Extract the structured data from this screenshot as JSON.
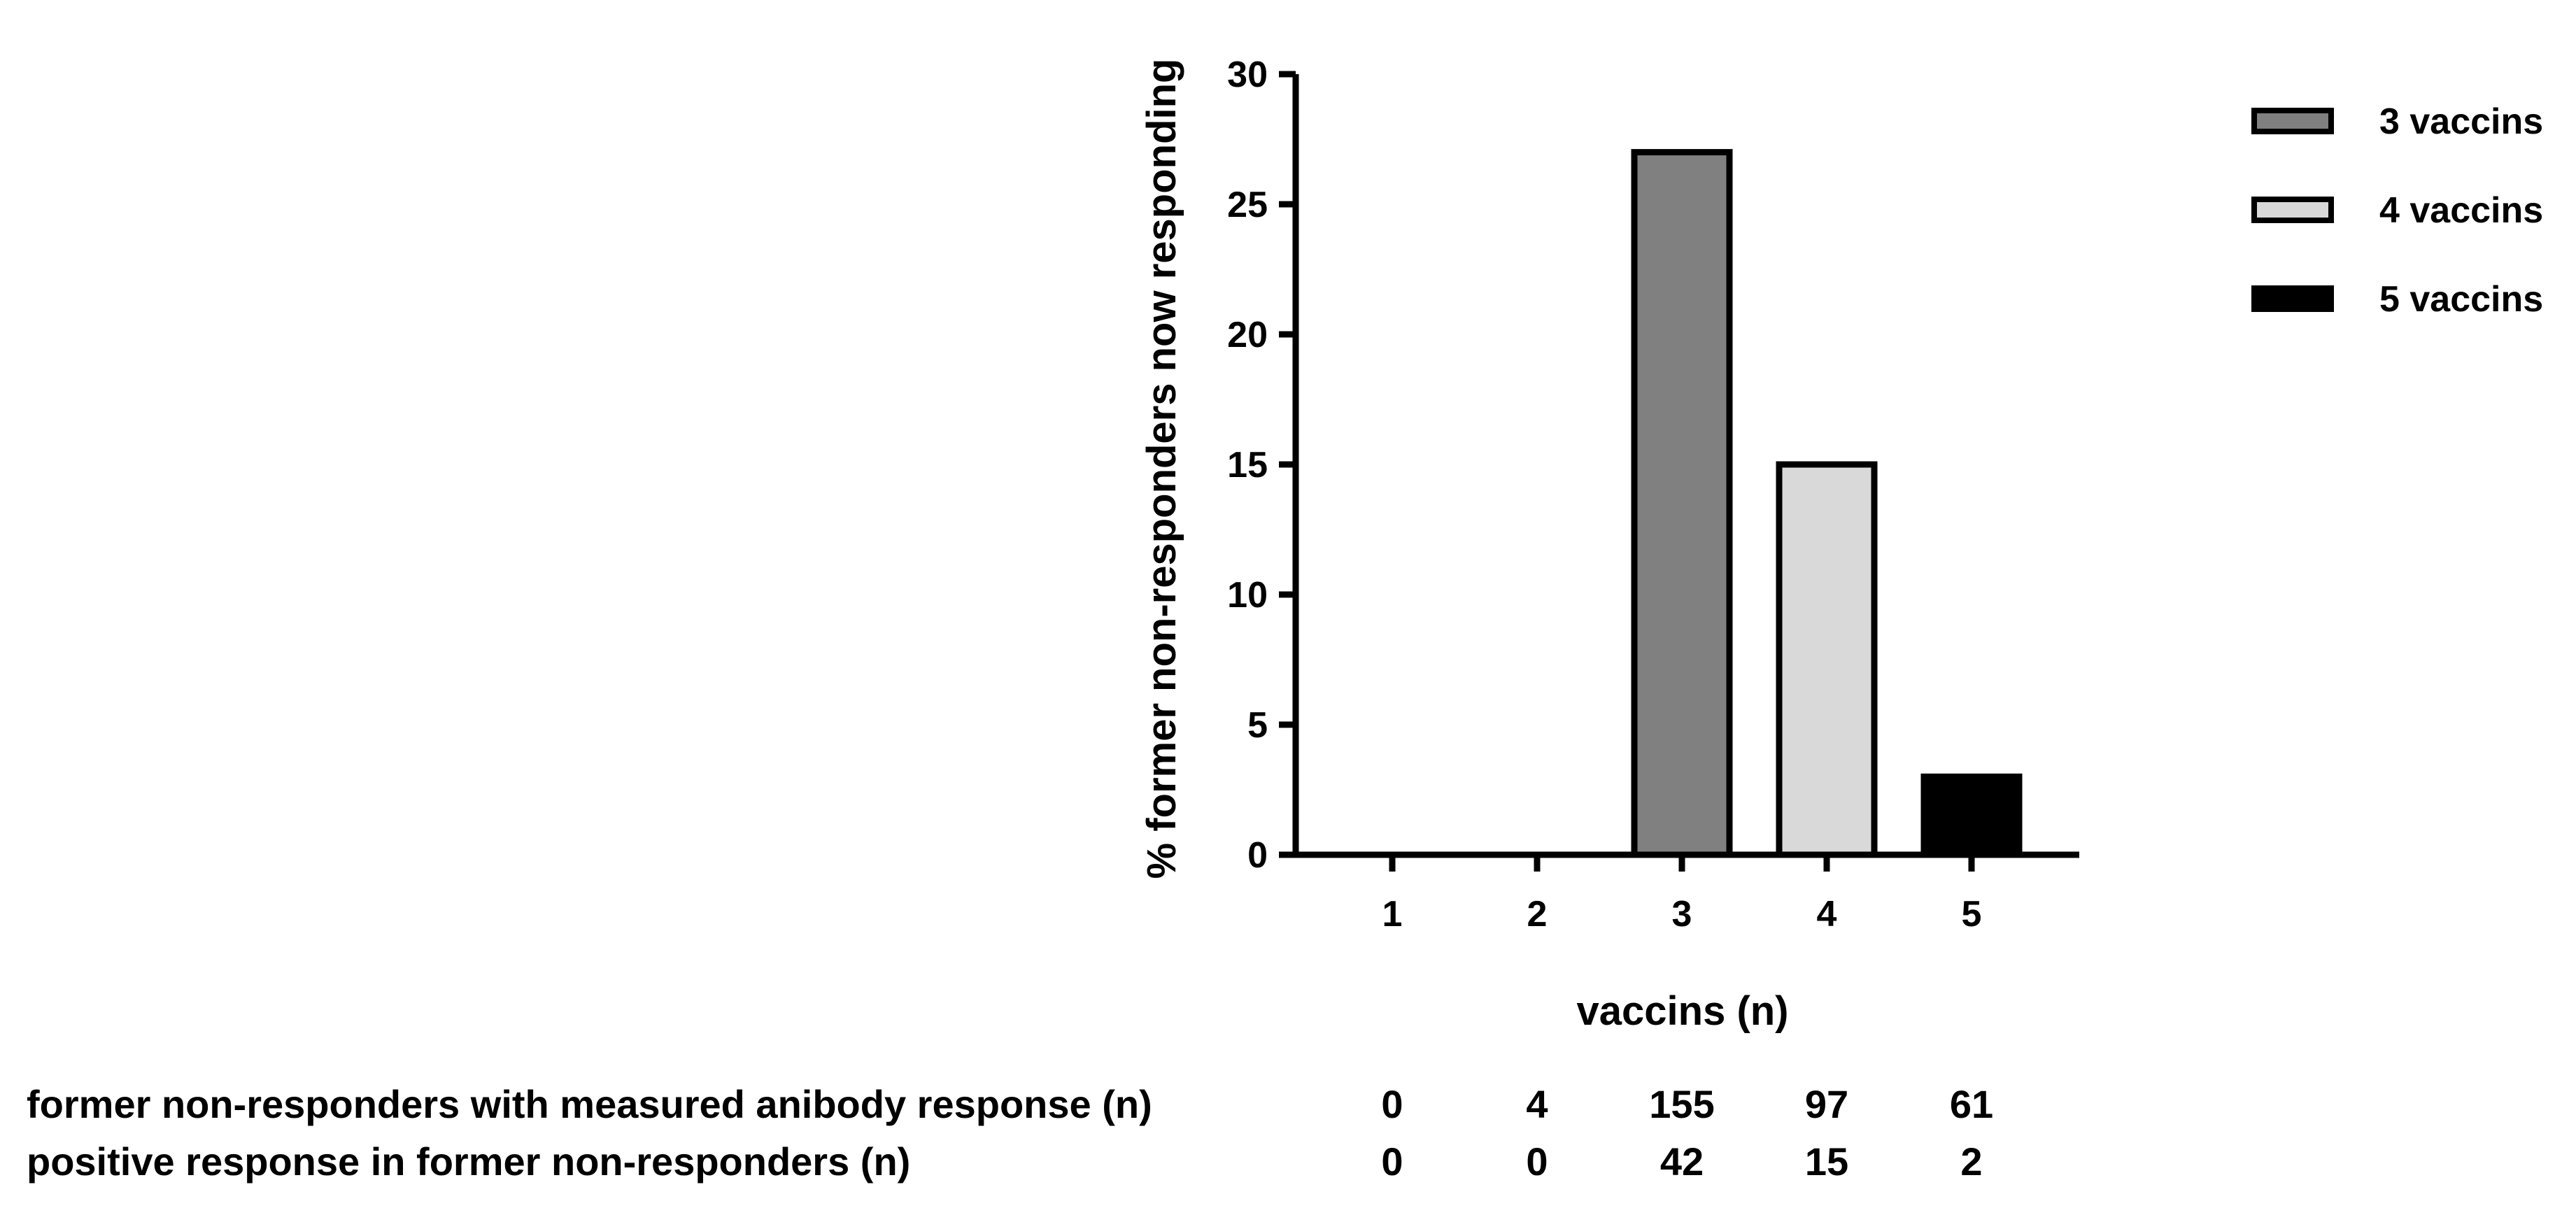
{
  "chart_data": {
    "type": "bar",
    "categories": [
      "1",
      "2",
      "3",
      "4",
      "5"
    ],
    "values": [
      0,
      0,
      27,
      15,
      3
    ],
    "bar_colors": [
      "#808080",
      "#808080",
      "#808080",
      "#d9d9d9",
      "#000000"
    ],
    "xlabel": "vaccins (n)",
    "ylabel": "% former non-responders now responding",
    "ylim": [
      0,
      30
    ],
    "yticks": [
      0,
      5,
      10,
      15,
      20,
      25,
      30
    ],
    "grid": false,
    "legend_position": "top-right",
    "legend": [
      {
        "label": "3 vaccins",
        "color": "#808080"
      },
      {
        "label": "4 vaccins",
        "color": "#d9d9d9"
      },
      {
        "label": "5 vaccins",
        "color": "#000000"
      }
    ]
  },
  "table": {
    "rows": [
      {
        "label": "former non-responders with measured anibody response (n)",
        "values": [
          "0",
          "4",
          "155",
          "97",
          "61"
        ]
      },
      {
        "label": "positive response in former non-responders (n)",
        "values": [
          "0",
          "0",
          "42",
          "15",
          "2"
        ]
      }
    ]
  }
}
